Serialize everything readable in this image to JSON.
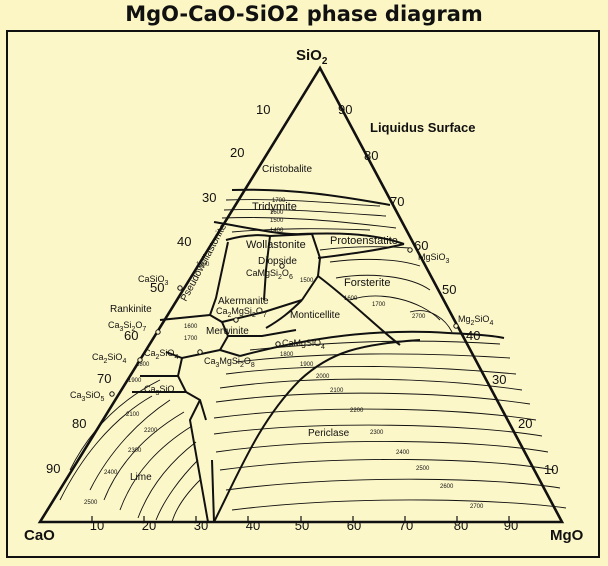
{
  "title": "MgO-CaO-SiO2 phase diagram",
  "vertices": {
    "top": "SiO",
    "top_sub": "2",
    "left": "CaO",
    "right": "MgO"
  },
  "liquidus_label": "Liquidus Surface",
  "left_ticks": [
    "10",
    "20",
    "30",
    "40",
    "50",
    "60",
    "70",
    "80",
    "90"
  ],
  "right_ticks": [
    "90",
    "80",
    "70",
    "60",
    "50",
    "40",
    "30",
    "20",
    "10"
  ],
  "bottom_ticks": [
    "10",
    "20",
    "30",
    "40",
    "50",
    "60",
    "70",
    "80",
    "90"
  ],
  "fields": {
    "cristobalite": "Cristobalite",
    "tridymite": "Tridymite",
    "wollastonite": "Wollastonite",
    "pseudowollastonite": "Pseudowollastonite",
    "diopside": "Diopside",
    "protoenstatite": "Protoenstatite",
    "forsterite": "Forsterite",
    "rankinite": "Rankinite",
    "akermanite": "Akermanite",
    "merwinite": "Merwinite",
    "monticellite": "Monticellite",
    "periclase": "Periclase",
    "lime": "Lime"
  },
  "compounds": {
    "casio3": "CaSiO",
    "mgsio3": "MgSiO",
    "camgsi2o6": "CaMgSi",
    "ca2mgsi2o7": "Ca",
    "ca3si2o7": "Ca",
    "ca2sio4_a": "Ca",
    "ca2sio4_b": "Ca",
    "ca3mgsi2o8": "Ca",
    "camgsio4": "CaMgSiO",
    "mg2sio4": "Mg",
    "ca3sio5": "Ca",
    "ca3sio": "Ca"
  },
  "isotherms": [
    "1700",
    "1600",
    "1500",
    "1400",
    "1500",
    "1500",
    "1600",
    "1700",
    "1600",
    "1700",
    "1800",
    "1900",
    "2000",
    "2100",
    "2200",
    "2300",
    "2400",
    "2500",
    "2600",
    "2700",
    "2800",
    "1800",
    "1900",
    "2000",
    "2100",
    "2200",
    "2300",
    "2400",
    "2500",
    "2700"
  ],
  "colors": {
    "background": "#fbf6c4",
    "line": "#111111"
  }
}
